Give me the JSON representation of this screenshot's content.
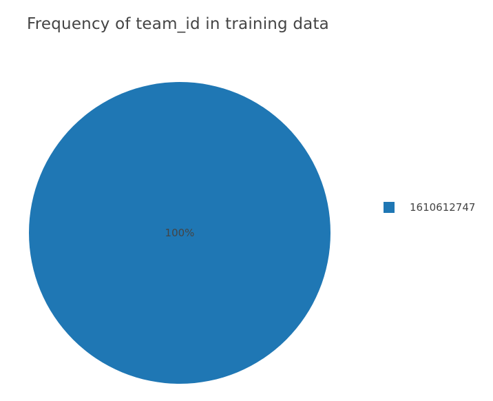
{
  "chart_data": {
    "type": "pie",
    "title": "Frequency of team_id in training data",
    "labels": [
      "1610612747"
    ],
    "values": [
      100
    ],
    "text_labels": [
      "100%"
    ],
    "colors": [
      "#1f77b4"
    ],
    "label_color": "#444444",
    "legend": {
      "position": "right",
      "entries": [
        "1610612747"
      ]
    }
  }
}
